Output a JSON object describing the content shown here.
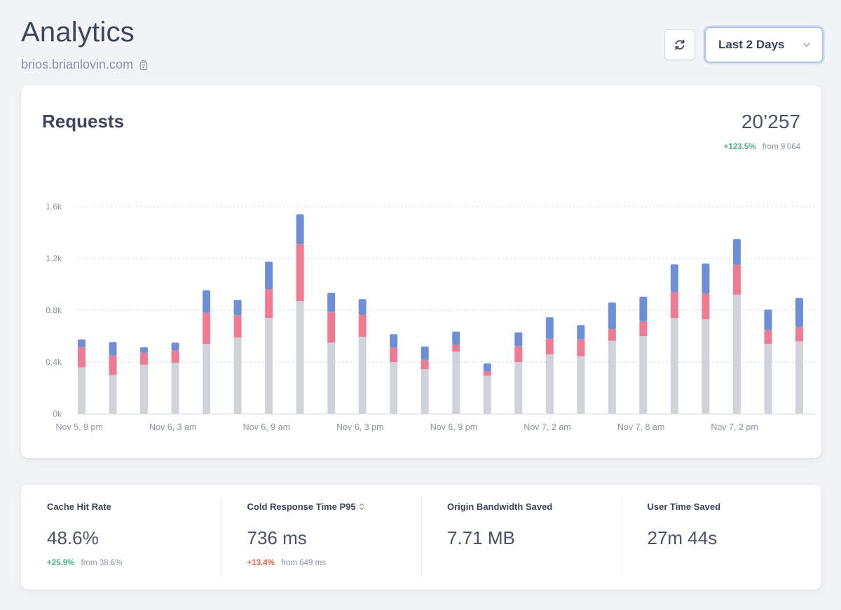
{
  "header": {
    "title": "Analytics",
    "site": "brios.brianlovin.com",
    "range_label": "Last 2 Days"
  },
  "requests": {
    "title": "Requests",
    "total": "20’257",
    "delta": "+123.5%",
    "delta_from": "from 9’064"
  },
  "colors": {
    "cached": "#d1d3da",
    "miss": "#ee7b91",
    "other": "#6e8fd6",
    "grid": "#d7dae0",
    "positive": "#4caf7d",
    "negative": "#e5603e"
  },
  "chart_data": {
    "type": "bar",
    "stacked": true,
    "ylim": [
      0,
      1600
    ],
    "yticks": [
      0,
      400,
      800,
      1200,
      1600
    ],
    "ytick_labels": [
      "0k",
      "0.4k",
      "0.8k",
      "1.2k",
      "1.6k"
    ],
    "x_tick_labels": [
      "Nov 5, 9 pm",
      "Nov 6, 3 am",
      "Nov 6, 9 am",
      "Nov 6, 3 pm",
      "Nov 6, 9 pm",
      "Nov 7, 2 am",
      "Nov 7, 8 am",
      "Nov 7, 2 pm"
    ],
    "x_tick_positions": [
      0,
      3,
      6,
      9,
      12,
      15,
      18,
      21
    ],
    "grid": true,
    "series": [
      {
        "values": [
          360,
          300,
          380,
          395,
          540,
          590,
          740,
          870,
          550,
          595,
          400,
          345,
          480,
          295,
          400,
          460,
          445,
          565,
          600,
          740,
          730,
          920,
          540,
          560
        ]
      },
      {
        "values": [
          155,
          150,
          90,
          95,
          240,
          170,
          220,
          440,
          235,
          170,
          110,
          70,
          55,
          35,
          120,
          120,
          130,
          90,
          115,
          200,
          200,
          230,
          105,
          110
        ]
      },
      {
        "values": [
          60,
          105,
          45,
          60,
          175,
          120,
          215,
          230,
          150,
          120,
          105,
          105,
          100,
          60,
          110,
          165,
          110,
          205,
          190,
          215,
          230,
          200,
          160,
          225
        ]
      }
    ]
  },
  "stats": [
    {
      "label": "Cache Hit Rate",
      "value": "48.6%",
      "delta": "+25.9%",
      "delta_dir": "pos",
      "from": "from 38.6%"
    },
    {
      "label": "Cold Response Time P95",
      "value": "736 ms",
      "delta": "+13.4%",
      "delta_dir": "neg",
      "from": "from 649 ms"
    },
    {
      "label": "Origin Bandwidth Saved",
      "value": "7.71 MB",
      "delta": "",
      "delta_dir": "",
      "from": ""
    },
    {
      "label": "User Time Saved",
      "value": "27m 44s",
      "delta": "",
      "delta_dir": "",
      "from": ""
    }
  ]
}
